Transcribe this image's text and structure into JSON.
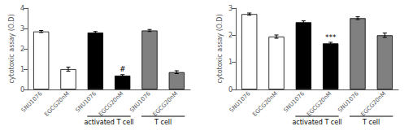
{
  "chart_data": [
    {
      "type": "bar",
      "ylabel": "cytotoxic assay (O.D)",
      "categories": [
        "SNU1076",
        "EGCG20nM",
        "SNU1076",
        "EGCG20nM",
        "SNU1076",
        "EGCG20nM"
      ],
      "values": [
        2.85,
        1.0,
        2.8,
        0.68,
        2.9,
        0.85
      ],
      "errors": [
        0.05,
        0.1,
        0.05,
        0.05,
        0.05,
        0.07
      ],
      "colors": [
        "#ffffff",
        "#ffffff",
        "#000000",
        "#000000",
        "#808080",
        "#808080"
      ],
      "ylim": [
        0,
        4
      ],
      "yticks": [
        0,
        1,
        2,
        3,
        4
      ],
      "grid": false,
      "annotations": [
        {
          "text": "#",
          "bar": 3
        }
      ],
      "groups": [
        {
          "text": "activated T cell",
          "start": 2,
          "end": 3
        },
        {
          "text": "T cell",
          "start": 4,
          "end": 5
        }
      ]
    },
    {
      "type": "bar",
      "ylabel": "cytotoxic assay (O.D)",
      "categories": [
        "SNU1076",
        "EGCG20nM",
        "SNU1076",
        "EGCG20nM",
        "SNU1076",
        "EGCG20nM"
      ],
      "values": [
        2.78,
        1.95,
        2.48,
        1.7,
        2.63,
        2.0
      ],
      "errors": [
        0.04,
        0.06,
        0.05,
        0.04,
        0.05,
        0.08
      ],
      "colors": [
        "#ffffff",
        "#ffffff",
        "#000000",
        "#000000",
        "#808080",
        "#808080"
      ],
      "ylim": [
        0,
        3
      ],
      "yticks": [
        0,
        1,
        2,
        3
      ],
      "grid": false,
      "annotations": [
        {
          "text": "***",
          "bar": 3
        }
      ],
      "groups": [
        {
          "text": "activated T cell",
          "start": 2,
          "end": 3
        },
        {
          "text": "T cell",
          "start": 4,
          "end": 5
        }
      ]
    }
  ]
}
